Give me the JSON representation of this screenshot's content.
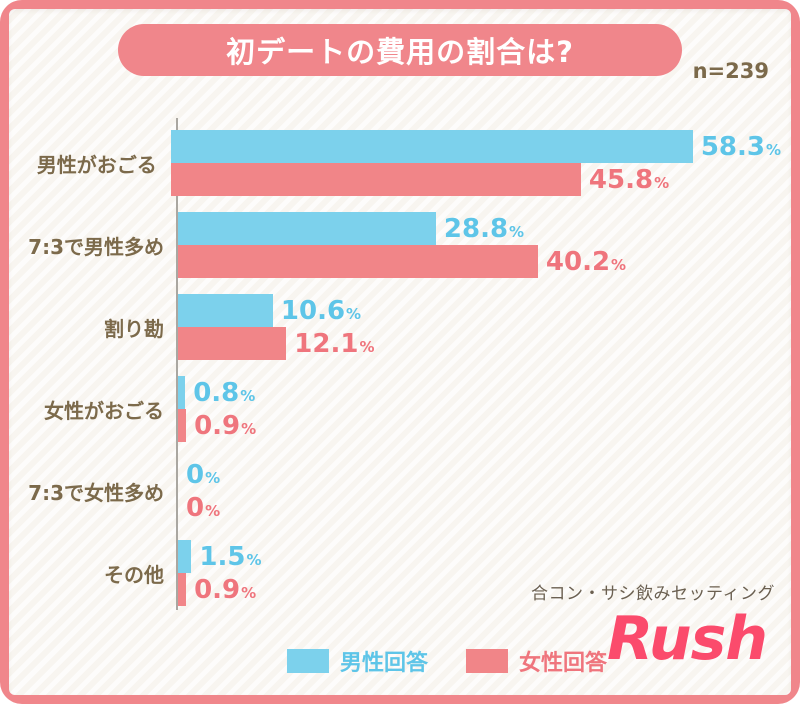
{
  "header": {
    "title": "初デートの費用の割合は?",
    "sample_label": "n=239"
  },
  "colors": {
    "frame": "#f0868b",
    "card_bg": "#f8f5f0",
    "banner_text": "#ffffff",
    "male": "#7cd1ec",
    "male_text": "#5ec5e8",
    "female": "#f18588",
    "female_text": "#ef757d",
    "label_brown": "#7c6a4b",
    "axis": "#aaa7a1",
    "tagline": "#6b6051",
    "logo": "#fb4b6c"
  },
  "chart_data": {
    "type": "bar",
    "orientation": "horizontal",
    "title": "初デートの費用の割合は?",
    "sample_size": 239,
    "unit": "%",
    "categories": [
      "男性がおごる",
      "7:3で男性多め",
      "割り勘",
      "女性がおごる",
      "7:3で女性多め",
      "その他"
    ],
    "series": [
      {
        "name": "男性回答",
        "values": [
          58.3,
          28.8,
          10.6,
          0.8,
          0,
          1.5
        ]
      },
      {
        "name": "女性回答",
        "values": [
          45.8,
          40.2,
          12.1,
          0.9,
          0,
          0.9
        ]
      }
    ],
    "xlim": [
      0,
      65
    ],
    "grid": false,
    "legend_position": "bottom"
  },
  "footer": {
    "tagline": "合コン・サシ飲みセッティング",
    "logo": "Rush"
  }
}
